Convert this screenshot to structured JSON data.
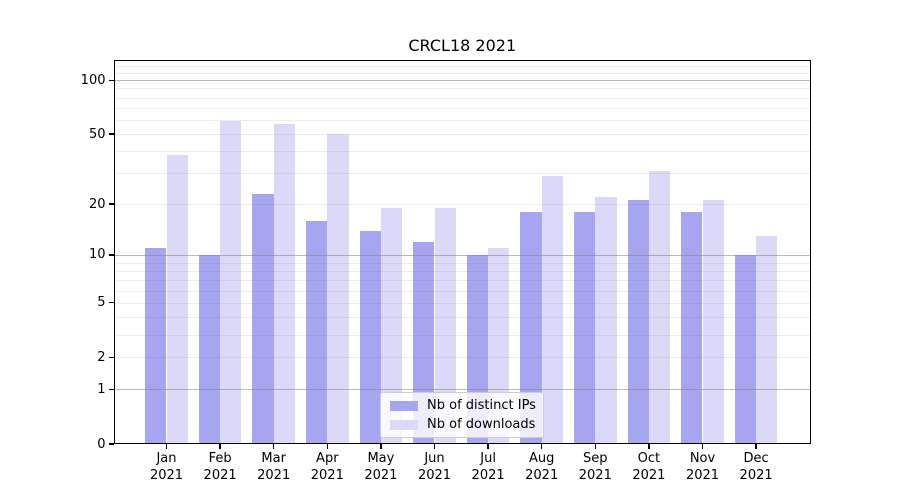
{
  "title": "CRCL18 2021",
  "chart_data": {
    "type": "bar",
    "title": "CRCL18 2021",
    "categories": [
      {
        "month": "Jan",
        "year": "2021"
      },
      {
        "month": "Feb",
        "year": "2021"
      },
      {
        "month": "Mar",
        "year": "2021"
      },
      {
        "month": "Apr",
        "year": "2021"
      },
      {
        "month": "May",
        "year": "2021"
      },
      {
        "month": "Jun",
        "year": "2021"
      },
      {
        "month": "Jul",
        "year": "2021"
      },
      {
        "month": "Aug",
        "year": "2021"
      },
      {
        "month": "Sep",
        "year": "2021"
      },
      {
        "month": "Oct",
        "year": "2021"
      },
      {
        "month": "Nov",
        "year": "2021"
      },
      {
        "month": "Dec",
        "year": "2021"
      }
    ],
    "series": [
      {
        "name": "Nb of distinct IPs",
        "color": "#a5a5f0",
        "values": [
          11,
          10,
          23,
          16,
          14,
          12,
          10,
          18,
          18,
          21,
          18,
          10
        ]
      },
      {
        "name": "Nb of downloads",
        "color": "#dadaf8",
        "values": [
          38,
          59,
          57,
          50,
          19,
          19,
          11,
          29,
          22,
          31,
          21,
          13
        ]
      }
    ],
    "xlabel": "",
    "ylabel": "",
    "yscale": "log1p",
    "ylim": [
      0,
      130
    ],
    "y_tick_values": [
      0,
      1,
      2,
      5,
      10,
      20,
      50,
      100
    ],
    "major_grid_values": [
      1,
      10,
      100
    ],
    "minor_grid_values": [
      2,
      3,
      4,
      5,
      6,
      7,
      8,
      9,
      20,
      30,
      40,
      50,
      60,
      70,
      80,
      90,
      110,
      120
    ],
    "grid": true,
    "legend_position": "lower center"
  }
}
